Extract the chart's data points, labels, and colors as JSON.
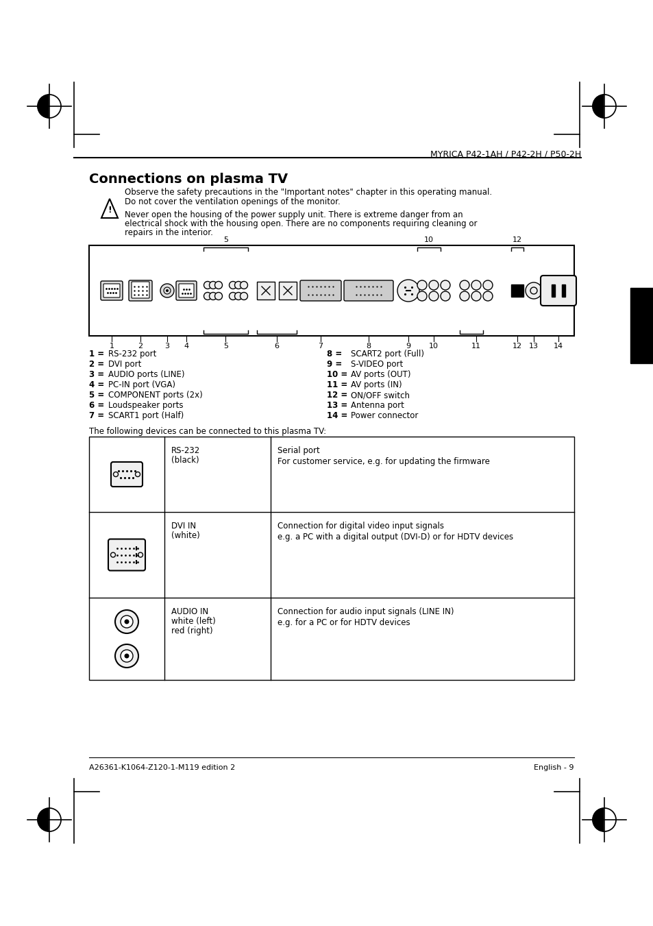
{
  "page_title": "MYRICA P42-1AH / P42-2H / P50-2H",
  "section_title": "Connections on plasma TV",
  "warning_line1": "Observe the safety precautions in the \"Important notes\" chapter in this operating manual.",
  "warning_line2": "Do not cover the ventilation openings of the monitor.",
  "warn3_1": "Never open the housing of the power supply unit. There is extreme danger from an",
  "warn3_2": "electrical shock with the housing open. There are no components requiring cleaning or",
  "warn3_3": "repairs in the interior.",
  "legend_left": [
    [
      "1 =",
      "RS-232 port"
    ],
    [
      "2 =",
      "DVI port"
    ],
    [
      "3 =",
      "AUDIO ports (LINE)"
    ],
    [
      "4 =",
      "PC-IN port (VGA)"
    ],
    [
      "5 =",
      "COMPONENT ports (2x)"
    ],
    [
      "6 =",
      "Loudspeaker ports"
    ],
    [
      "7 =",
      "SCART1 port (Half)"
    ]
  ],
  "legend_right": [
    [
      "8 =",
      "SCART2 port (Full)"
    ],
    [
      "9 =",
      "S-VIDEO port"
    ],
    [
      "10 =",
      "AV ports (OUT)"
    ],
    [
      "11 =",
      "AV ports (IN)"
    ],
    [
      "12 =",
      "ON/OFF switch"
    ],
    [
      "13 =",
      "Antenna port"
    ],
    [
      "14 =",
      "Power connector"
    ]
  ],
  "table_intro": "The following devices can be connected to this plasma TV:",
  "table_rows": [
    {
      "label1": "RS-232",
      "label2": "(black)",
      "desc_title": "Serial port",
      "desc_body": "For customer service, e.g. for updating the firmware"
    },
    {
      "label1": "DVI IN",
      "label2": "(white)",
      "desc_title": "Connection for digital video input signals",
      "desc_body": "e.g. a PC with a digital output (DVI-D) or for HDTV devices"
    },
    {
      "label1": "AUDIO IN",
      "label2": "white (left)",
      "label3": "red (right)",
      "desc_title": "Connection for audio input signals (LINE IN)",
      "desc_body": "e.g. for a PC or for HDTV devices"
    }
  ],
  "footer_left": "A26361-K1064-Z120-1-M119 edition 2",
  "footer_right": "English - 9",
  "bg_color": "#ffffff"
}
